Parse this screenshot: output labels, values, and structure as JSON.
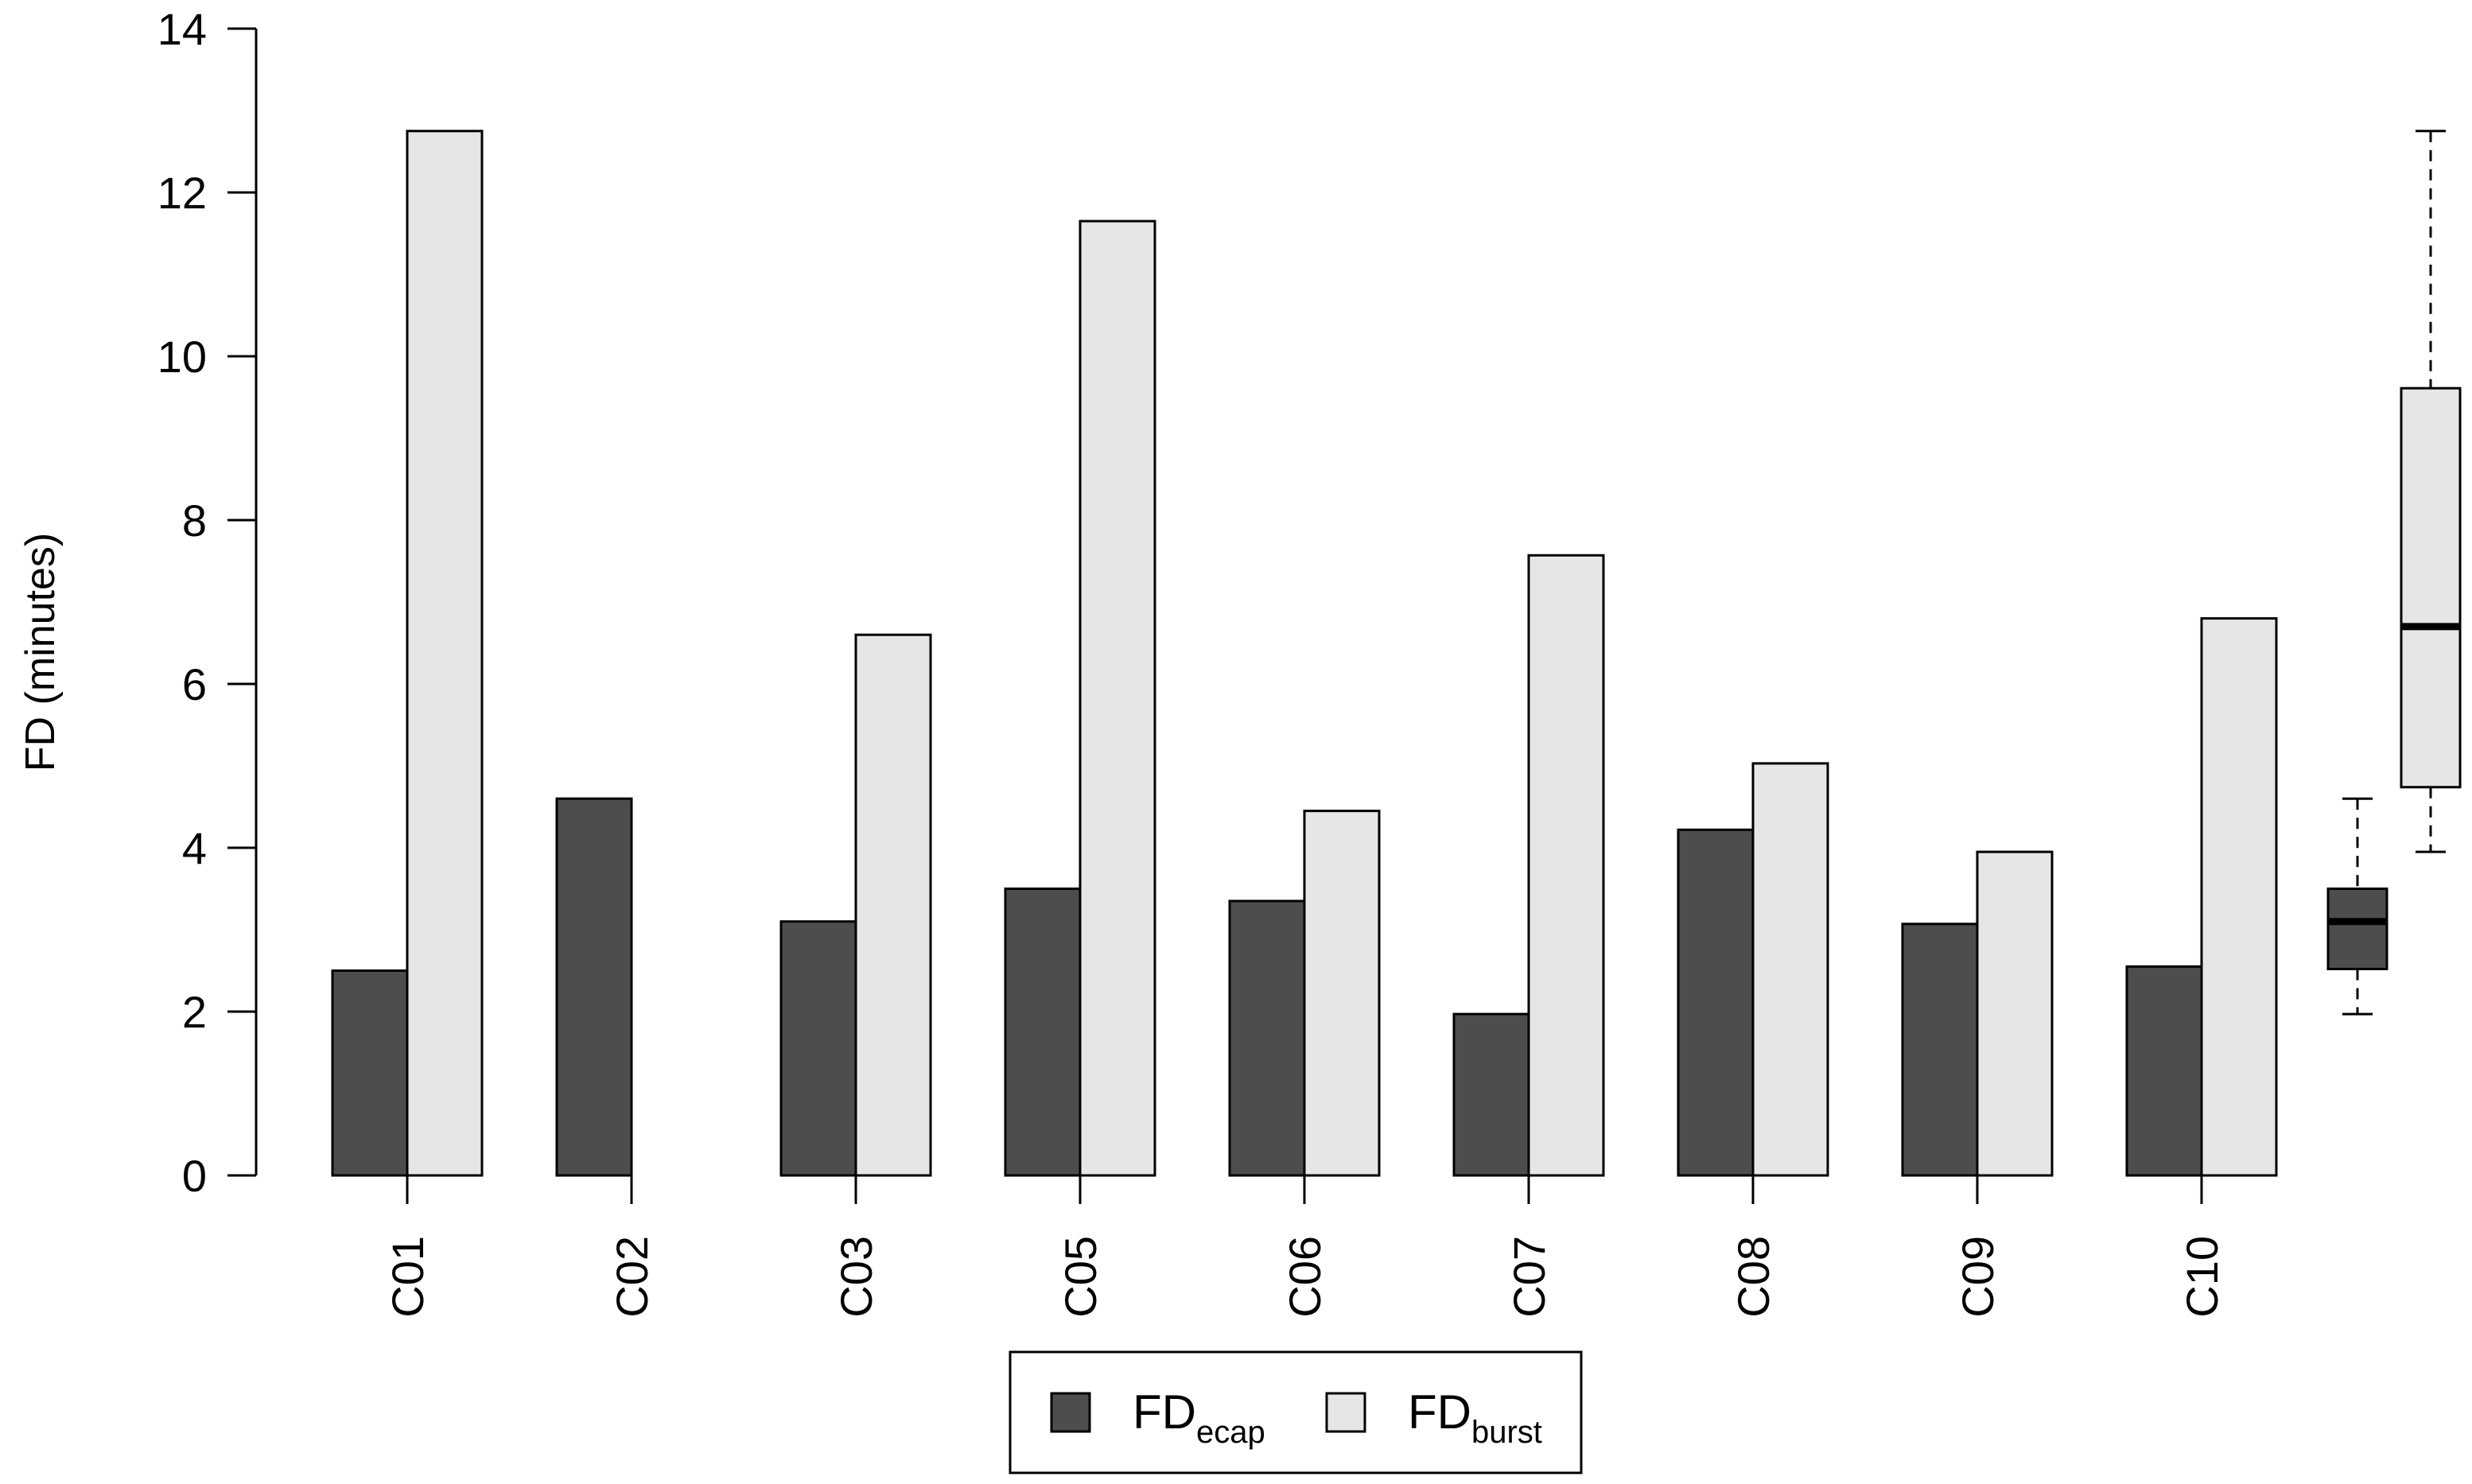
{
  "chart_data": {
    "type": "bar",
    "title": "",
    "xlabel": "",
    "ylabel": "FD (minutes)",
    "ylim": [
      0,
      14
    ],
    "yticks": [
      0,
      2,
      4,
      6,
      8,
      10,
      12,
      14
    ],
    "grid": false,
    "categories": [
      "C01",
      "C02",
      "C03",
      "C05",
      "C06",
      "C07",
      "C08",
      "C09",
      "C10"
    ],
    "series": [
      {
        "name": "FDecap",
        "label_main": "FD",
        "label_sub": "ecap",
        "color": "#4d4d4d",
        "values": [
          2.5,
          4.6,
          3.1,
          3.5,
          3.35,
          1.97,
          4.22,
          3.07,
          2.55
        ]
      },
      {
        "name": "FDburst",
        "label_main": "FD",
        "label_sub": "burst",
        "color": "#e6e6e6",
        "values": [
          12.75,
          null,
          6.6,
          11.65,
          4.45,
          7.57,
          5.03,
          3.95,
          6.8
        ]
      }
    ],
    "boxplots": [
      {
        "series": "FDecap",
        "min": 1.97,
        "q1": 2.52,
        "median": 3.1,
        "q3": 3.5,
        "max": 4.6
      },
      {
        "series": "FDburst",
        "min": 3.95,
        "q1": 4.74,
        "median": 6.7,
        "q3": 9.61,
        "max": 12.75
      }
    ],
    "legend_position": "bottom-center"
  }
}
